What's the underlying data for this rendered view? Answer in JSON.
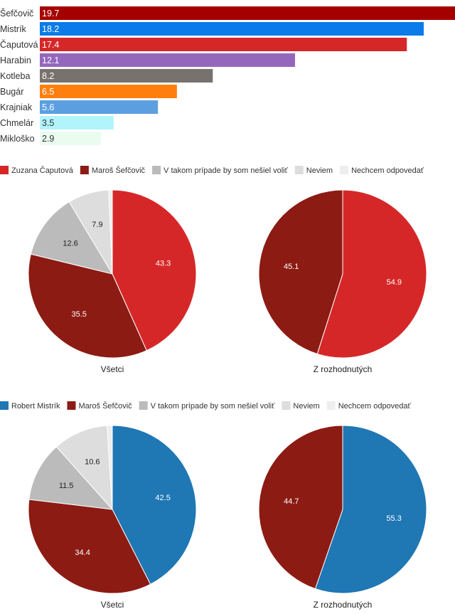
{
  "chart_data": [
    {
      "type": "bar",
      "orientation": "horizontal",
      "categories": [
        "Šefčovič",
        "Mistrík",
        "Čaputová",
        "Harabin",
        "Kotleba",
        "Bugár",
        "Krajniak",
        "Chmelár",
        "Mikloško"
      ],
      "values": [
        19.7,
        18.2,
        17.4,
        12.1,
        8.2,
        6.5,
        5.6,
        3.5,
        2.9
      ],
      "colors": [
        "#a50000",
        "#0a7be8",
        "#d62728",
        "#9467bd",
        "#77726e",
        "#ff7f0e",
        "#5b9fe0",
        "#b2f4fb",
        "#eafbf0"
      ],
      "label_colors": [
        "#ffffff",
        "#ffffff",
        "#ffffff",
        "#ffffff",
        "#ffffff",
        "#ffffff",
        "#ffffff",
        "#333333",
        "#333333"
      ],
      "xlim": [
        0,
        19.7
      ],
      "grid": false
    },
    {
      "type": "pie",
      "legend": [
        "Zuzana Čaputová",
        "Maroš Šefčovič",
        "V takom prípade by som nešiel voliť",
        "Neviem",
        "Nechcem odpovedať"
      ],
      "legend_colors": [
        "#d62728",
        "#8c1b13",
        "#bbbbbb",
        "#dddddd",
        "#eeeeee"
      ],
      "legend_placement": "top-left",
      "pies": [
        {
          "title": "Všetci",
          "values": [
            43.3,
            35.5,
            12.6,
            7.9,
            0.7
          ],
          "labels": [
            "43.3",
            "35.5",
            "12.6",
            "7.9",
            ""
          ],
          "colors": [
            "#d62728",
            "#8c1b13",
            "#bbbbbb",
            "#dddddd",
            "#eeeeee"
          ],
          "label_colors": [
            "#ffffff",
            "#ffffff",
            "#222222",
            "#222222",
            "#222222"
          ]
        },
        {
          "title": "Z rozhodnutých",
          "values": [
            54.9,
            45.1
          ],
          "labels": [
            "54.9",
            "45.1"
          ],
          "colors": [
            "#d62728",
            "#8c1b13"
          ],
          "label_colors": [
            "#ffffff",
            "#ffffff"
          ]
        }
      ]
    },
    {
      "type": "pie",
      "legend": [
        "Robert Mistrík",
        "Maroš Šefčovič",
        "V takom prípade by som nešiel voliť",
        "Neviem",
        "Nechcem odpovedať"
      ],
      "legend_colors": [
        "#1f77b4",
        "#8c1b13",
        "#bbbbbb",
        "#dddddd",
        "#eeeeee"
      ],
      "legend_placement": "top-left",
      "pies": [
        {
          "title": "Všetci",
          "values": [
            42.5,
            34.4,
            11.5,
            10.6,
            1.0
          ],
          "labels": [
            "42.5",
            "34.4",
            "11.5",
            "10.6",
            ""
          ],
          "colors": [
            "#1f77b4",
            "#8c1b13",
            "#bbbbbb",
            "#dddddd",
            "#eeeeee"
          ],
          "label_colors": [
            "#ffffff",
            "#ffffff",
            "#222222",
            "#222222",
            "#222222"
          ]
        },
        {
          "title": "Z rozhodnutých",
          "values": [
            55.3,
            44.7
          ],
          "labels": [
            "55.3",
            "44.7"
          ],
          "colors": [
            "#1f77b4",
            "#8c1b13"
          ],
          "label_colors": [
            "#ffffff",
            "#ffffff"
          ]
        }
      ]
    }
  ]
}
